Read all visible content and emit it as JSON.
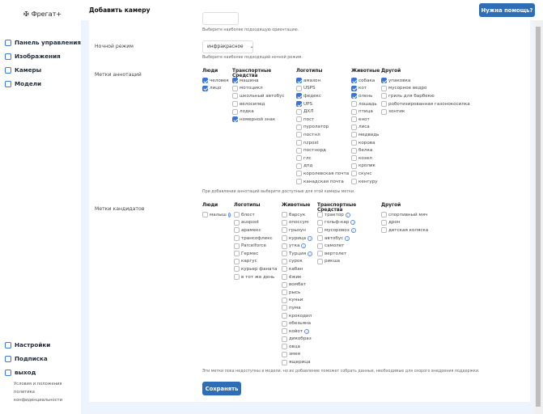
{
  "app": {
    "name": "Фрегат+"
  },
  "sidebar": {
    "top": [
      {
        "label": "Панель управления",
        "icon": "home-icon"
      },
      {
        "label": "Изображения",
        "icon": "image-icon"
      },
      {
        "label": "Камеры",
        "icon": "camera-icon"
      },
      {
        "label": "Модели",
        "icon": "gear-icon"
      }
    ],
    "bottom": [
      {
        "label": "Настройки",
        "icon": "gear-icon"
      },
      {
        "label": "Подписка",
        "icon": "card-icon"
      },
      {
        "label": "выход",
        "icon": "logout-icon"
      }
    ],
    "legal": [
      "Условия и положения",
      "политика",
      "конфиденциальности"
    ]
  },
  "header": {
    "title": "Добавить камеру",
    "help": "Нужна помощь?"
  },
  "form": {
    "orientation_hint": "Выберите наиболее подходящую ориентацию.",
    "night": {
      "label": "Ночной режим",
      "value": "инфракрасное",
      "hint": "Выберите наиболее подходящий ночной режим."
    },
    "annot": {
      "label": "Метки аннотаций",
      "hint": "При добавлении аннотаций выберите доступные для этой камеры метки.",
      "groups": [
        {
          "title": "Люди",
          "items": [
            [
              "человек",
              1
            ],
            [
              "лицо",
              1
            ]
          ]
        },
        {
          "title": "Транспортные Средства",
          "items": [
            [
              "машина",
              1
            ],
            [
              "мотоцикл",
              0
            ],
            [
              "школьный автобус",
              0
            ],
            [
              "велосипед",
              0
            ],
            [
              "лодка",
              0
            ],
            [
              "номерной знак",
              1
            ]
          ]
        },
        {
          "title": "Логотипы",
          "items": [
            [
              "амазон",
              1
            ],
            [
              "USPS",
              0
            ],
            [
              "федекс",
              1
            ],
            [
              "UPS",
              1
            ],
            [
              "ДХЛ",
              0
            ],
            [
              "пост",
              0
            ],
            [
              "пуролатор",
              0
            ],
            [
              "постнл",
              0
            ],
            [
              "nzpost",
              0
            ],
            [
              "постнорд",
              0
            ],
            [
              "глс",
              0
            ],
            [
              "дпд",
              0
            ],
            [
              "королевская почта",
              0
            ],
            [
              "канадская почта",
              0
            ]
          ]
        },
        {
          "title": "Животные",
          "items": [
            [
              "собака",
              1
            ],
            [
              "кот",
              1
            ],
            [
              "олень",
              1
            ],
            [
              "лошадь",
              0
            ],
            [
              "птица",
              0
            ],
            [
              "енот",
              0
            ],
            [
              "лиса",
              0
            ],
            [
              "медведь",
              0
            ],
            [
              "корова",
              0
            ],
            [
              "белка",
              0
            ],
            [
              "козел",
              0
            ],
            [
              "кролик",
              0
            ],
            [
              "скунс",
              0
            ],
            [
              "кенгуру",
              0
            ]
          ]
        },
        {
          "title": "Другой",
          "items": [
            [
              "упаковка",
              1
            ],
            [
              "мусорное ведро",
              0
            ],
            [
              "гриль для барбекю",
              0
            ],
            [
              "роботизированная газонокосилка",
              0
            ],
            [
              "зонтик",
              0
            ]
          ]
        }
      ]
    },
    "cand": {
      "label": "Метки кандидатов",
      "hint": "Эти метки пока недоступны в модели, но их добавление поможет собрать данные, необходимые для скорого внедрения поддержки.",
      "groups": [
        {
          "title": "Люди",
          "items": [
            [
              "малыш",
              1
            ]
          ]
        },
        {
          "title": "Логотипы",
          "items": [
            [
              "блост",
              0
            ],
            [
              "auspost",
              0
            ],
            [
              "арамекс",
              0
            ],
            [
              "трансофлекс",
              0
            ],
            [
              "Parcelforce",
              0
            ],
            [
              "Гермес",
              0
            ],
            [
              "каргус",
              0
            ],
            [
              "курьер фаната",
              0
            ],
            [
              "в тот же день",
              0
            ]
          ]
        },
        {
          "title": "Животные",
          "items": [
            [
              "барсук",
              0
            ],
            [
              "опоссум",
              0
            ],
            [
              "грызун",
              0
            ],
            [
              "курица",
              1
            ],
            [
              "утка",
              1
            ],
            [
              "Турция",
              1
            ],
            [
              "сурок",
              0
            ],
            [
              "кабан",
              0
            ],
            [
              "ёжик",
              0
            ],
            [
              "вомбат",
              0
            ],
            [
              "рысь",
              0
            ],
            [
              "куньи",
              0
            ],
            [
              "пума",
              0
            ],
            [
              "крокодил",
              0
            ],
            [
              "обезьяна",
              0
            ],
            [
              "койот",
              1
            ],
            [
              "дикобраз",
              0
            ],
            [
              "овца",
              0
            ],
            [
              "змея",
              0
            ],
            [
              "ящерица",
              0
            ]
          ]
        },
        {
          "title": "Транспортные Средства",
          "items": [
            [
              "трактор",
              1
            ],
            [
              "гольф-кар",
              1
            ],
            [
              "мусоровоз",
              1
            ],
            [
              "автобус",
              1
            ],
            [
              "самолет",
              0
            ],
            [
              "вертолет",
              0
            ],
            [
              "рикша",
              0
            ]
          ]
        },
        {
          "title": "Другой",
          "items": [
            [
              "спортивный мяч",
              0
            ],
            [
              "дрон",
              0
            ],
            [
              "детская коляска",
              0
            ]
          ]
        }
      ]
    },
    "save": "Сохранять"
  },
  "colors": {
    "accent": "#2f6db5",
    "checkbox": "#3c73d6",
    "background": "#edf4fd"
  }
}
